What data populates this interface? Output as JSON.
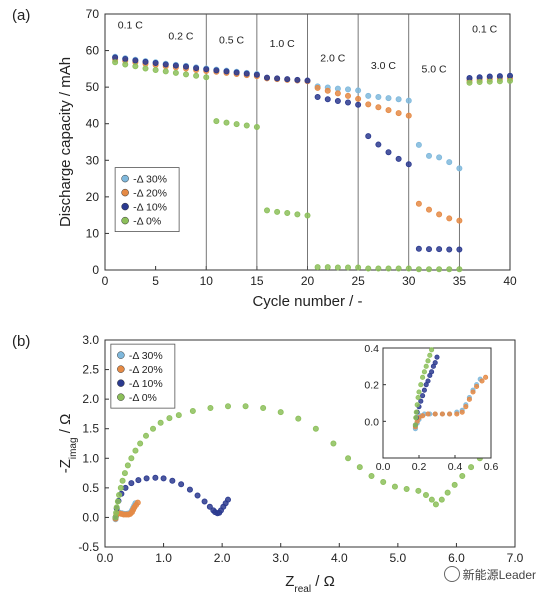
{
  "chart_data": [
    {
      "panel_label": "(a)",
      "type": "scatter",
      "xlabel": "Cycle number / -",
      "ylabel": "Discharge capacity / mAh",
      "xlim": [
        0,
        40
      ],
      "ylim": [
        0,
        70
      ],
      "xticks": [
        "0",
        "5",
        "10",
        "15",
        "20",
        "25",
        "30",
        "35",
        "40"
      ],
      "yticks": [
        "0",
        "10",
        "20",
        "30",
        "40",
        "50",
        "60",
        "70"
      ],
      "grid": false,
      "legend_position": "bottom-left",
      "rate_labels": [
        {
          "text": "0.1 C",
          "x": 2.5,
          "y": 66
        },
        {
          "text": "0.2 C",
          "x": 7.5,
          "y": 63
        },
        {
          "text": "0.5 C",
          "x": 12.5,
          "y": 62
        },
        {
          "text": "1.0 C",
          "x": 17.5,
          "y": 61
        },
        {
          "text": "2.0 C",
          "x": 22.5,
          "y": 57
        },
        {
          "text": "3.0 C",
          "x": 27.5,
          "y": 55
        },
        {
          "text": "5.0 C",
          "x": 32.5,
          "y": 54
        },
        {
          "text": "0.1 C",
          "x": 37.5,
          "y": 65
        }
      ],
      "region_boundaries": [
        10,
        15,
        20,
        25,
        30,
        35
      ],
      "series": [
        {
          "name": "-Δ 30%",
          "x": [
            1,
            2,
            3,
            4,
            5,
            6,
            7,
            8,
            9,
            10,
            11,
            12,
            13,
            14,
            15,
            16,
            17,
            18,
            19,
            20,
            21,
            22,
            23,
            24,
            25,
            26,
            27,
            28,
            29,
            30,
            31,
            32,
            33,
            34,
            35,
            36,
            37,
            38,
            39,
            40
          ],
          "y": [
            58.3,
            57.9,
            57.5,
            57.1,
            56.8,
            56.4,
            56.1,
            55.8,
            55.4,
            55.1,
            54.8,
            54.5,
            54.2,
            53.9,
            53.6,
            52.5,
            52.3,
            52.1,
            51.9,
            51.7,
            50.2,
            49.9,
            49.6,
            49.4,
            49.1,
            47.6,
            47.3,
            47.0,
            46.7,
            46.3,
            34.2,
            31.2,
            30.8,
            29.5,
            27.8,
            52.3,
            52.5,
            52.7,
            52.8,
            52.9
          ]
        },
        {
          "name": "-Δ 20%",
          "x": [
            1,
            2,
            3,
            4,
            5,
            6,
            7,
            8,
            9,
            10,
            11,
            12,
            13,
            14,
            15,
            16,
            17,
            18,
            19,
            20,
            21,
            22,
            23,
            24,
            25,
            26,
            27,
            28,
            29,
            30,
            31,
            32,
            33,
            34,
            35,
            36,
            37,
            38,
            39,
            40
          ],
          "y": [
            57.6,
            57.2,
            56.8,
            56.4,
            56.1,
            55.7,
            55.4,
            55.1,
            54.7,
            54.4,
            54.2,
            53.9,
            53.6,
            53.3,
            53.0,
            52.4,
            52.2,
            52.0,
            51.8,
            51.6,
            49.8,
            49.0,
            48.3,
            47.6,
            46.8,
            45.3,
            44.5,
            43.7,
            42.9,
            42.2,
            18.1,
            16.5,
            15.2,
            14.1,
            13.5,
            51.8,
            52.0,
            52.2,
            52.3,
            52.4
          ]
        },
        {
          "name": "-Δ 10%",
          "x": [
            1,
            2,
            3,
            4,
            5,
            6,
            7,
            8,
            9,
            10,
            11,
            12,
            13,
            14,
            15,
            16,
            17,
            18,
            19,
            20,
            21,
            22,
            23,
            24,
            25,
            26,
            27,
            28,
            29,
            30,
            31,
            32,
            33,
            34,
            35,
            36,
            37,
            38,
            39,
            40
          ],
          "y": [
            58.1,
            57.7,
            57.3,
            56.9,
            56.6,
            56.2,
            55.9,
            55.6,
            55.2,
            54.9,
            54.6,
            54.3,
            54.0,
            53.7,
            53.4,
            52.6,
            52.4,
            52.2,
            52.0,
            51.8,
            47.3,
            46.7,
            46.2,
            45.8,
            45.2,
            36.6,
            34.3,
            32.2,
            30.4,
            28.9,
            5.8,
            5.7,
            5.7,
            5.6,
            5.6,
            52.5,
            52.7,
            52.9,
            53.0,
            53.1
          ]
        },
        {
          "name": "-Δ 0%",
          "x": [
            1,
            2,
            3,
            4,
            5,
            6,
            7,
            8,
            9,
            10,
            11,
            12,
            13,
            14,
            15,
            16,
            17,
            18,
            19,
            20,
            21,
            22,
            23,
            24,
            25,
            26,
            27,
            28,
            29,
            30,
            31,
            32,
            33,
            34,
            35,
            36,
            37,
            38,
            39,
            40
          ],
          "y": [
            56.8,
            56.2,
            55.7,
            55.1,
            54.7,
            54.3,
            53.9,
            53.5,
            53.1,
            52.7,
            40.7,
            40.3,
            39.9,
            39.5,
            39.1,
            16.3,
            15.9,
            15.6,
            15.2,
            14.9,
            0.8,
            0.8,
            0.7,
            0.7,
            0.7,
            0.4,
            0.4,
            0.4,
            0.4,
            0.4,
            0.2,
            0.2,
            0.2,
            0.2,
            0.2,
            51.2,
            51.4,
            51.5,
            51.6,
            51.7
          ]
        }
      ]
    },
    {
      "panel_label": "(b)",
      "type": "scatter",
      "xlabel": "Z_real / Ω",
      "ylabel": "-Z_imag / Ω",
      "xlim": [
        0,
        7
      ],
      "ylim": [
        -0.5,
        3.0
      ],
      "xticks": [
        "0.0",
        "1.0",
        "2.0",
        "3.0",
        "4.0",
        "5.0",
        "6.0",
        "7.0"
      ],
      "yticks": [
        "-0.5",
        "0.0",
        "0.5",
        "1.0",
        "1.5",
        "2.0",
        "2.5",
        "3.0"
      ],
      "grid": false,
      "legend_position": "top-left",
      "series": [
        {
          "name": "-Δ 30%",
          "x": [
            0.18,
            0.19,
            0.2,
            0.22,
            0.25,
            0.29,
            0.33,
            0.37,
            0.41,
            0.44,
            0.46,
            0.48,
            0.5,
            0.52
          ],
          "y": [
            -0.03,
            0.02,
            0.06,
            0.08,
            0.08,
            0.07,
            0.06,
            0.06,
            0.07,
            0.08,
            0.12,
            0.16,
            0.2,
            0.24
          ]
        },
        {
          "name": "-Δ 20%",
          "x": [
            0.18,
            0.19,
            0.21,
            0.24,
            0.28,
            0.32,
            0.36,
            0.4,
            0.43,
            0.46,
            0.48,
            0.5,
            0.53,
            0.56
          ],
          "y": [
            -0.02,
            0.03,
            0.06,
            0.07,
            0.06,
            0.05,
            0.05,
            0.05,
            0.06,
            0.09,
            0.13,
            0.17,
            0.21,
            0.25
          ]
        },
        {
          "name": "-Δ 10%",
          "x": [
            0.18,
            0.2,
            0.23,
            0.28,
            0.35,
            0.45,
            0.57,
            0.71,
            0.86,
            1.0,
            1.15,
            1.3,
            1.45,
            1.58,
            1.7,
            1.79,
            1.85,
            1.88,
            1.92,
            1.95,
            1.98,
            2.02,
            2.06,
            2.1
          ],
          "y": [
            0.0,
            0.15,
            0.28,
            0.4,
            0.5,
            0.58,
            0.63,
            0.66,
            0.67,
            0.66,
            0.62,
            0.56,
            0.47,
            0.37,
            0.27,
            0.18,
            0.12,
            0.09,
            0.07,
            0.08,
            0.12,
            0.18,
            0.24,
            0.3
          ]
        },
        {
          "name": "-Δ 0%",
          "x": [
            0.18,
            0.19,
            0.2,
            0.22,
            0.24,
            0.27,
            0.3,
            0.34,
            0.39,
            0.45,
            0.52,
            0.6,
            0.7,
            0.82,
            0.95,
            1.1,
            1.26,
            1.5,
            1.8,
            2.1,
            2.4,
            2.7,
            3.0,
            3.3,
            3.6,
            3.9,
            4.15,
            4.35,
            4.55,
            4.75,
            4.95,
            5.15,
            5.35,
            5.48,
            5.58,
            5.65,
            5.75,
            5.85,
            5.97,
            6.1,
            6.25,
            6.4,
            6.52
          ],
          "y": [
            0.0,
            0.08,
            0.17,
            0.27,
            0.38,
            0.5,
            0.62,
            0.75,
            0.88,
            1.0,
            1.13,
            1.25,
            1.38,
            1.5,
            1.6,
            1.68,
            1.73,
            1.8,
            1.85,
            1.88,
            1.88,
            1.85,
            1.78,
            1.67,
            1.5,
            1.25,
            1.0,
            0.85,
            0.7,
            0.6,
            0.52,
            0.48,
            0.45,
            0.38,
            0.3,
            0.22,
            0.3,
            0.42,
            0.55,
            0.7,
            0.85,
            1.0,
            1.08
          ]
        }
      ],
      "inset": {
        "xlim": [
          0.0,
          0.6
        ],
        "ylim": [
          -0.2,
          0.4
        ],
        "xticks": [
          "0.0",
          "0.2",
          "0.4",
          "0.6"
        ],
        "yticks": [
          "0.0",
          "0.2",
          "0.4"
        ],
        "series": [
          {
            "name": "-Δ 30%",
            "x": [
              0.18,
              0.19,
              0.2,
              0.21,
              0.23,
              0.26,
              0.29,
              0.33,
              0.37,
              0.41,
              0.44,
              0.46,
              0.48,
              0.5,
              0.52,
              0.54
            ],
            "y": [
              -0.04,
              -0.01,
              0.01,
              0.03,
              0.04,
              0.04,
              0.04,
              0.04,
              0.04,
              0.05,
              0.06,
              0.09,
              0.13,
              0.17,
              0.2,
              0.23
            ]
          },
          {
            "name": "-Δ 20%",
            "x": [
              0.18,
              0.19,
              0.2,
              0.22,
              0.25,
              0.29,
              0.33,
              0.37,
              0.41,
              0.44,
              0.46,
              0.48,
              0.5,
              0.52,
              0.55,
              0.57
            ],
            "y": [
              -0.03,
              0.0,
              0.02,
              0.03,
              0.04,
              0.04,
              0.04,
              0.04,
              0.04,
              0.05,
              0.08,
              0.12,
              0.16,
              0.19,
              0.22,
              0.24
            ]
          },
          {
            "name": "-Δ 10%",
            "x": [
              0.18,
              0.185,
              0.19,
              0.2,
              0.21,
              0.22,
              0.23,
              0.24,
              0.25,
              0.26,
              0.27,
              0.28,
              0.29,
              0.3
            ],
            "y": [
              -0.02,
              0.02,
              0.05,
              0.08,
              0.11,
              0.14,
              0.17,
              0.2,
              0.22,
              0.25,
              0.27,
              0.3,
              0.32,
              0.35
            ]
          },
          {
            "name": "-Δ 0%",
            "x": [
              0.18,
              0.182,
              0.185,
              0.19,
              0.195,
              0.2,
              0.21,
              0.22,
              0.23,
              0.24,
              0.25,
              0.26,
              0.27
            ],
            "y": [
              -0.02,
              0.02,
              0.05,
              0.09,
              0.13,
              0.16,
              0.2,
              0.24,
              0.27,
              0.3,
              0.33,
              0.36,
              0.39
            ]
          }
        ]
      }
    }
  ],
  "colors": {
    "-Δ 30%": "#7fb8dc",
    "-Δ 20%": "#e58a45",
    "-Δ 10%": "#2b3a8f",
    "-Δ 0%": "#8cbf5a"
  },
  "watermark": "新能源Leader",
  "watermark_icon": "wechat-icon"
}
